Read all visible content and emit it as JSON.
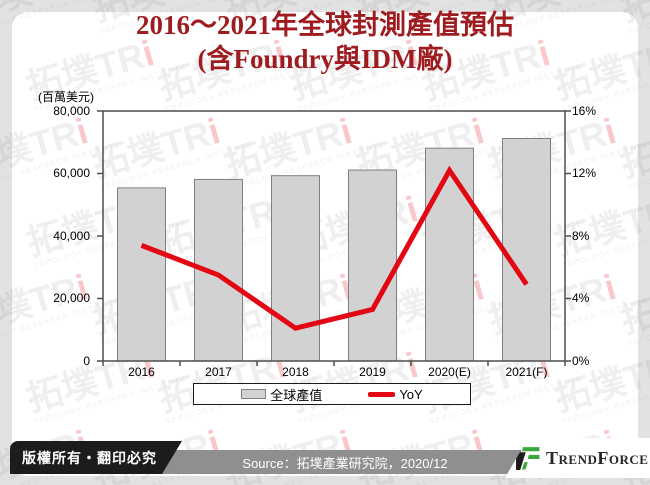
{
  "title": {
    "line1": "2016～2021年全球封測產值預估",
    "line2": "(含Foundry與IDM廠)",
    "color": "#9e1b1f"
  },
  "watermark": {
    "main": "拓墣TRi",
    "sub": "TOPOLOGY RESEARCH INSTITUTE"
  },
  "chart_data": {
    "type": "bar",
    "categories": [
      "2016",
      "2017",
      "2018",
      "2019",
      "2020(E)",
      "2021(F)"
    ],
    "series": [
      {
        "name": "全球產值",
        "type": "bar",
        "axis": "left",
        "values": [
          55400,
          58100,
          59300,
          61100,
          68100,
          71200
        ],
        "color": "#d2d2d2",
        "border_color": "#7f7f7f"
      },
      {
        "name": "YoY",
        "type": "line",
        "axis": "right",
        "values_pct": [
          7.4,
          5.5,
          2.1,
          3.3,
          12.2,
          4.9
        ],
        "color": "#e30613"
      }
    ],
    "left_axis": {
      "label": "(百萬美元)",
      "ticks": [
        "80,000",
        "60,000",
        "40,000",
        "20,000",
        "0"
      ],
      "min": 0,
      "max": 80000
    },
    "right_axis": {
      "ticks": [
        "16%",
        "12%",
        "8%",
        "4%",
        "0%"
      ],
      "min": 0,
      "max": 16
    },
    "legend": {
      "position": "bottom",
      "items": [
        "全球產值",
        "YoY"
      ]
    },
    "grid": false
  },
  "footer": {
    "copyright": "版權所有‧翻印必究",
    "source": "Source：拓墣產業研究院，2020/12",
    "brand": "TrendForce",
    "brand_green": "#3aa83c"
  }
}
